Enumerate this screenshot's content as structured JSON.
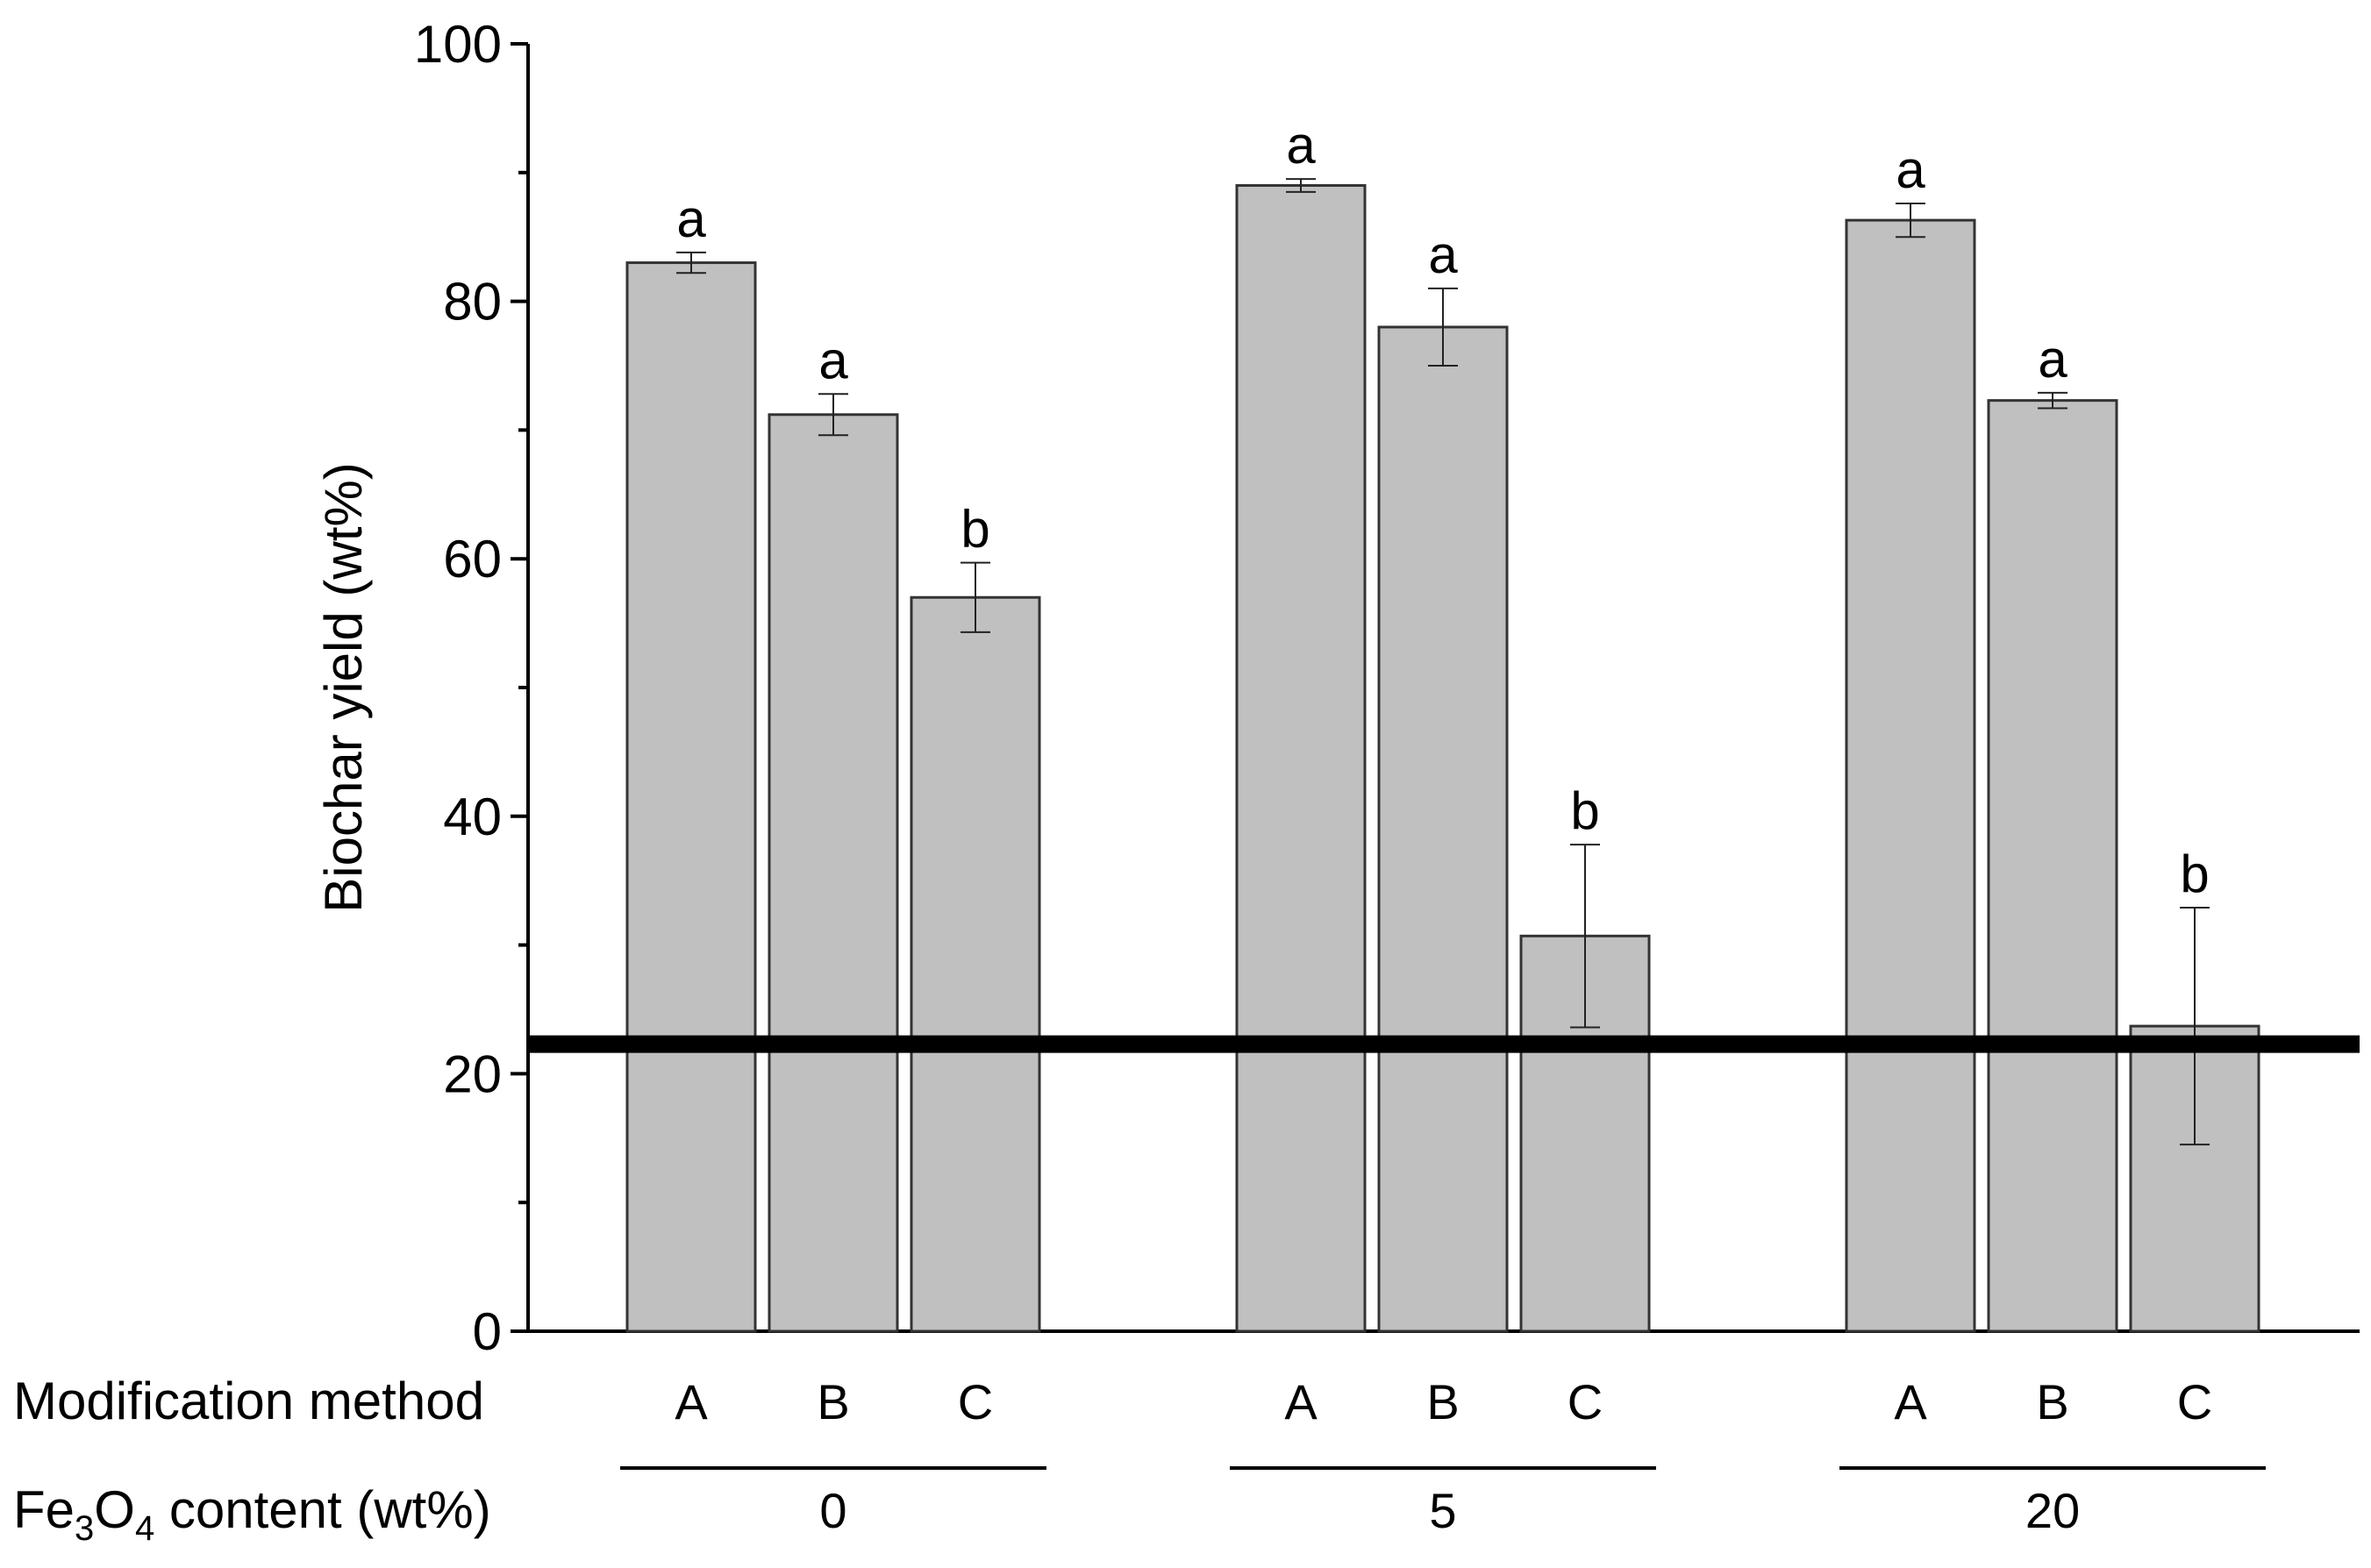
{
  "chart_data": {
    "type": "bar",
    "ylabel": "Biochar yield (wt%)",
    "ylim": [
      0,
      100
    ],
    "y_ticks": [
      0,
      20,
      40,
      60,
      80,
      100
    ],
    "y_tick_labels": [
      "0",
      "20",
      "40",
      "60",
      "80",
      "100"
    ],
    "row_labels": {
      "modification": "Modification method",
      "fe_prefix": "Fe",
      "fe_sub1": "3",
      "fe_mid": "O",
      "fe_sub2": "4",
      "fe_suffix": " content (wt%)"
    },
    "groups": [
      {
        "fe3o4_content": "0",
        "bars": [
          {
            "method": "A",
            "value": 83.0,
            "error": 0.8,
            "letter": "a"
          },
          {
            "method": "B",
            "value": 71.2,
            "error": 1.6,
            "letter": "a"
          },
          {
            "method": "C",
            "value": 57.0,
            "error": 2.7,
            "letter": "b"
          }
        ]
      },
      {
        "fe3o4_content": "5",
        "bars": [
          {
            "method": "A",
            "value": 89.0,
            "error": 0.5,
            "letter": "a"
          },
          {
            "method": "B",
            "value": 78.0,
            "error": 3.0,
            "letter": "a"
          },
          {
            "method": "C",
            "value": 30.7,
            "error": 7.1,
            "letter": "b"
          }
        ]
      },
      {
        "fe3o4_content": "20",
        "bars": [
          {
            "method": "A",
            "value": 86.3,
            "error": 1.3,
            "letter": "a"
          },
          {
            "method": "B",
            "value": 72.3,
            "error": 0.6,
            "letter": "a"
          },
          {
            "method": "C",
            "value": 23.7,
            "error": 9.2,
            "letter": "b"
          }
        ]
      }
    ],
    "reference_line_y": 22.3,
    "colors": {
      "bar_fill": "#c0c0c0",
      "bar_stroke": "#333333",
      "axis": "#000000",
      "reference_line": "#000000"
    }
  }
}
